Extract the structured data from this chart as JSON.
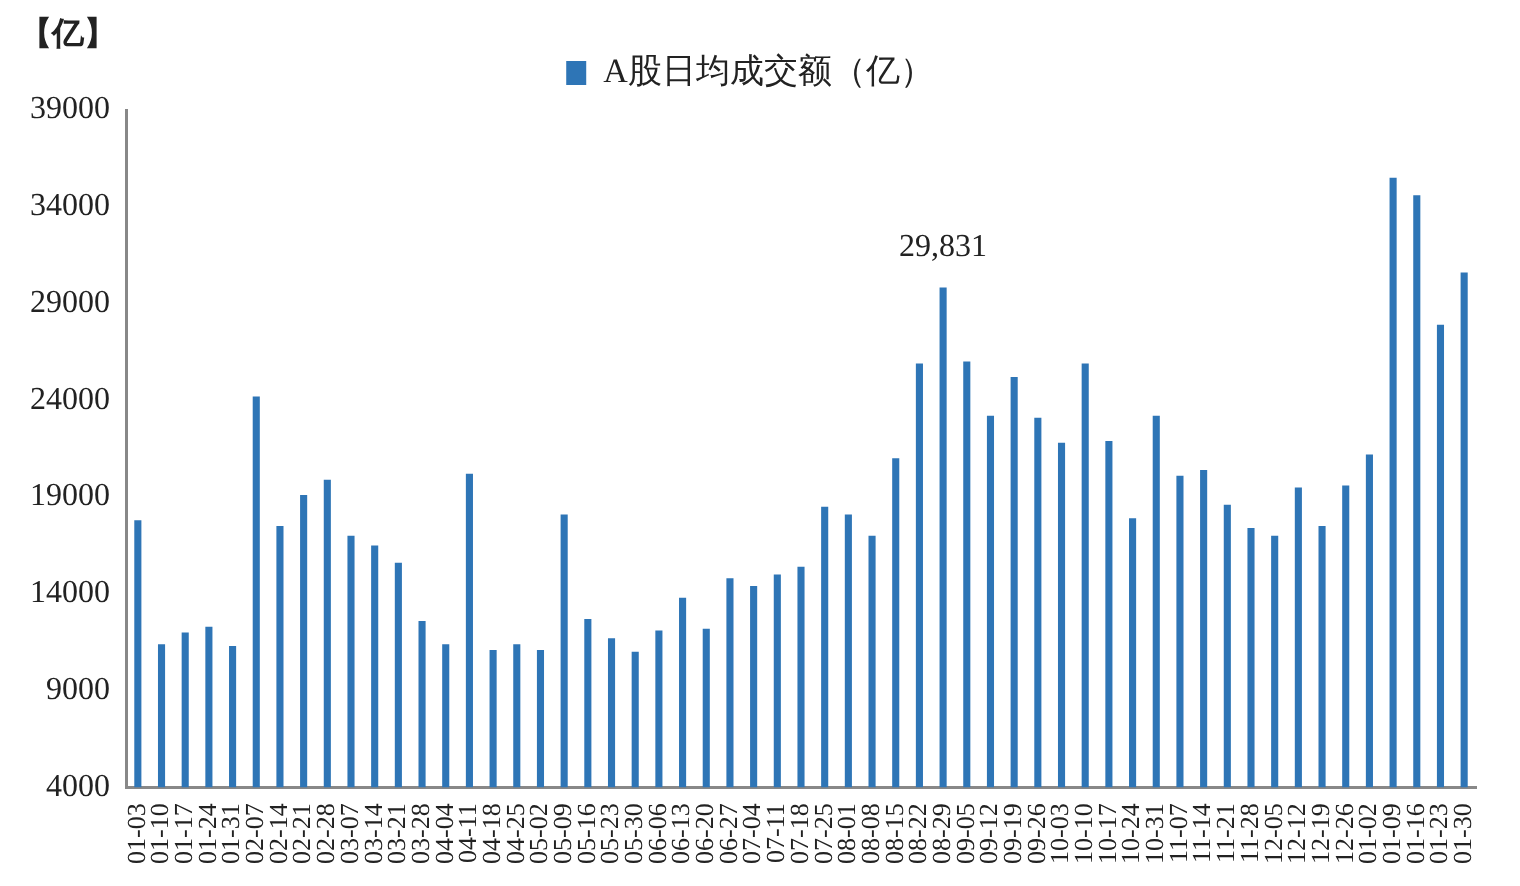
{
  "chart_data": {
    "type": "bar",
    "ylabel": "【亿】",
    "categories": [
      "01-03",
      "01-10",
      "01-17",
      "01-24",
      "01-31",
      "02-07",
      "02-14",
      "02-21",
      "02-28",
      "03-07",
      "03-14",
      "03-21",
      "03-28",
      "04-04",
      "04-11",
      "04-18",
      "04-25",
      "05-02",
      "05-09",
      "05-16",
      "05-23",
      "05-30",
      "06-06",
      "06-13",
      "06-20",
      "06-27",
      "07-04",
      "07-11",
      "07-18",
      "07-25",
      "08-01",
      "08-08",
      "08-15",
      "08-22",
      "08-29",
      "09-05",
      "09-12",
      "09-19",
      "09-26",
      "10-03",
      "10-10",
      "10-17",
      "10-24",
      "10-31",
      "11-07",
      "11-14",
      "11-21",
      "11-28",
      "12-05",
      "12-12",
      "12-19",
      "12-26",
      "01-02",
      "01-09",
      "01-16",
      "01-23",
      "01-30"
    ],
    "series": [
      {
        "name": "A股日均成交额（亿）",
        "color": "#2e75b6",
        "values": [
          17800,
          11400,
          12000,
          12300,
          11300,
          24200,
          17500,
          19100,
          19900,
          17000,
          16500,
          15600,
          12600,
          11400,
          20200,
          11100,
          11400,
          11100,
          18100,
          12700,
          11700,
          11000,
          12100,
          13800,
          12200,
          14800,
          14400,
          15000,
          15400,
          18500,
          18100,
          17000,
          21000,
          25900,
          29831,
          26000,
          23200,
          25200,
          23100,
          21800,
          25900,
          21900,
          17900,
          23200,
          20100,
          20400,
          18600,
          17400,
          17000,
          19500,
          17500,
          19600,
          21200,
          35500,
          34600,
          27900,
          30600
        ],
        "value_labels": [
          null,
          null,
          null,
          null,
          null,
          null,
          null,
          null,
          null,
          null,
          null,
          null,
          null,
          null,
          null,
          null,
          null,
          null,
          null,
          null,
          null,
          null,
          null,
          null,
          null,
          null,
          null,
          null,
          null,
          null,
          null,
          null,
          null,
          null,
          "29,831",
          null,
          null,
          null,
          null,
          null,
          null,
          null,
          null,
          null,
          null,
          null,
          null,
          null,
          null,
          null,
          null,
          null,
          null,
          null,
          null,
          null,
          null
        ]
      }
    ],
    "ylim": [
      4000,
      39000
    ],
    "yticks": [
      4000,
      9000,
      14000,
      19000,
      24000,
      29000,
      34000,
      39000
    ],
    "grid": false,
    "legend": "top"
  }
}
